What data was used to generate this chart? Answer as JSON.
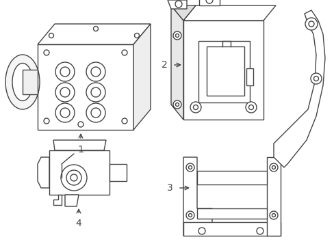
{
  "background_color": "#ffffff",
  "line_color": "#444444",
  "line_width": 1.0,
  "figsize": [
    4.89,
    3.6
  ],
  "dpi": 100
}
